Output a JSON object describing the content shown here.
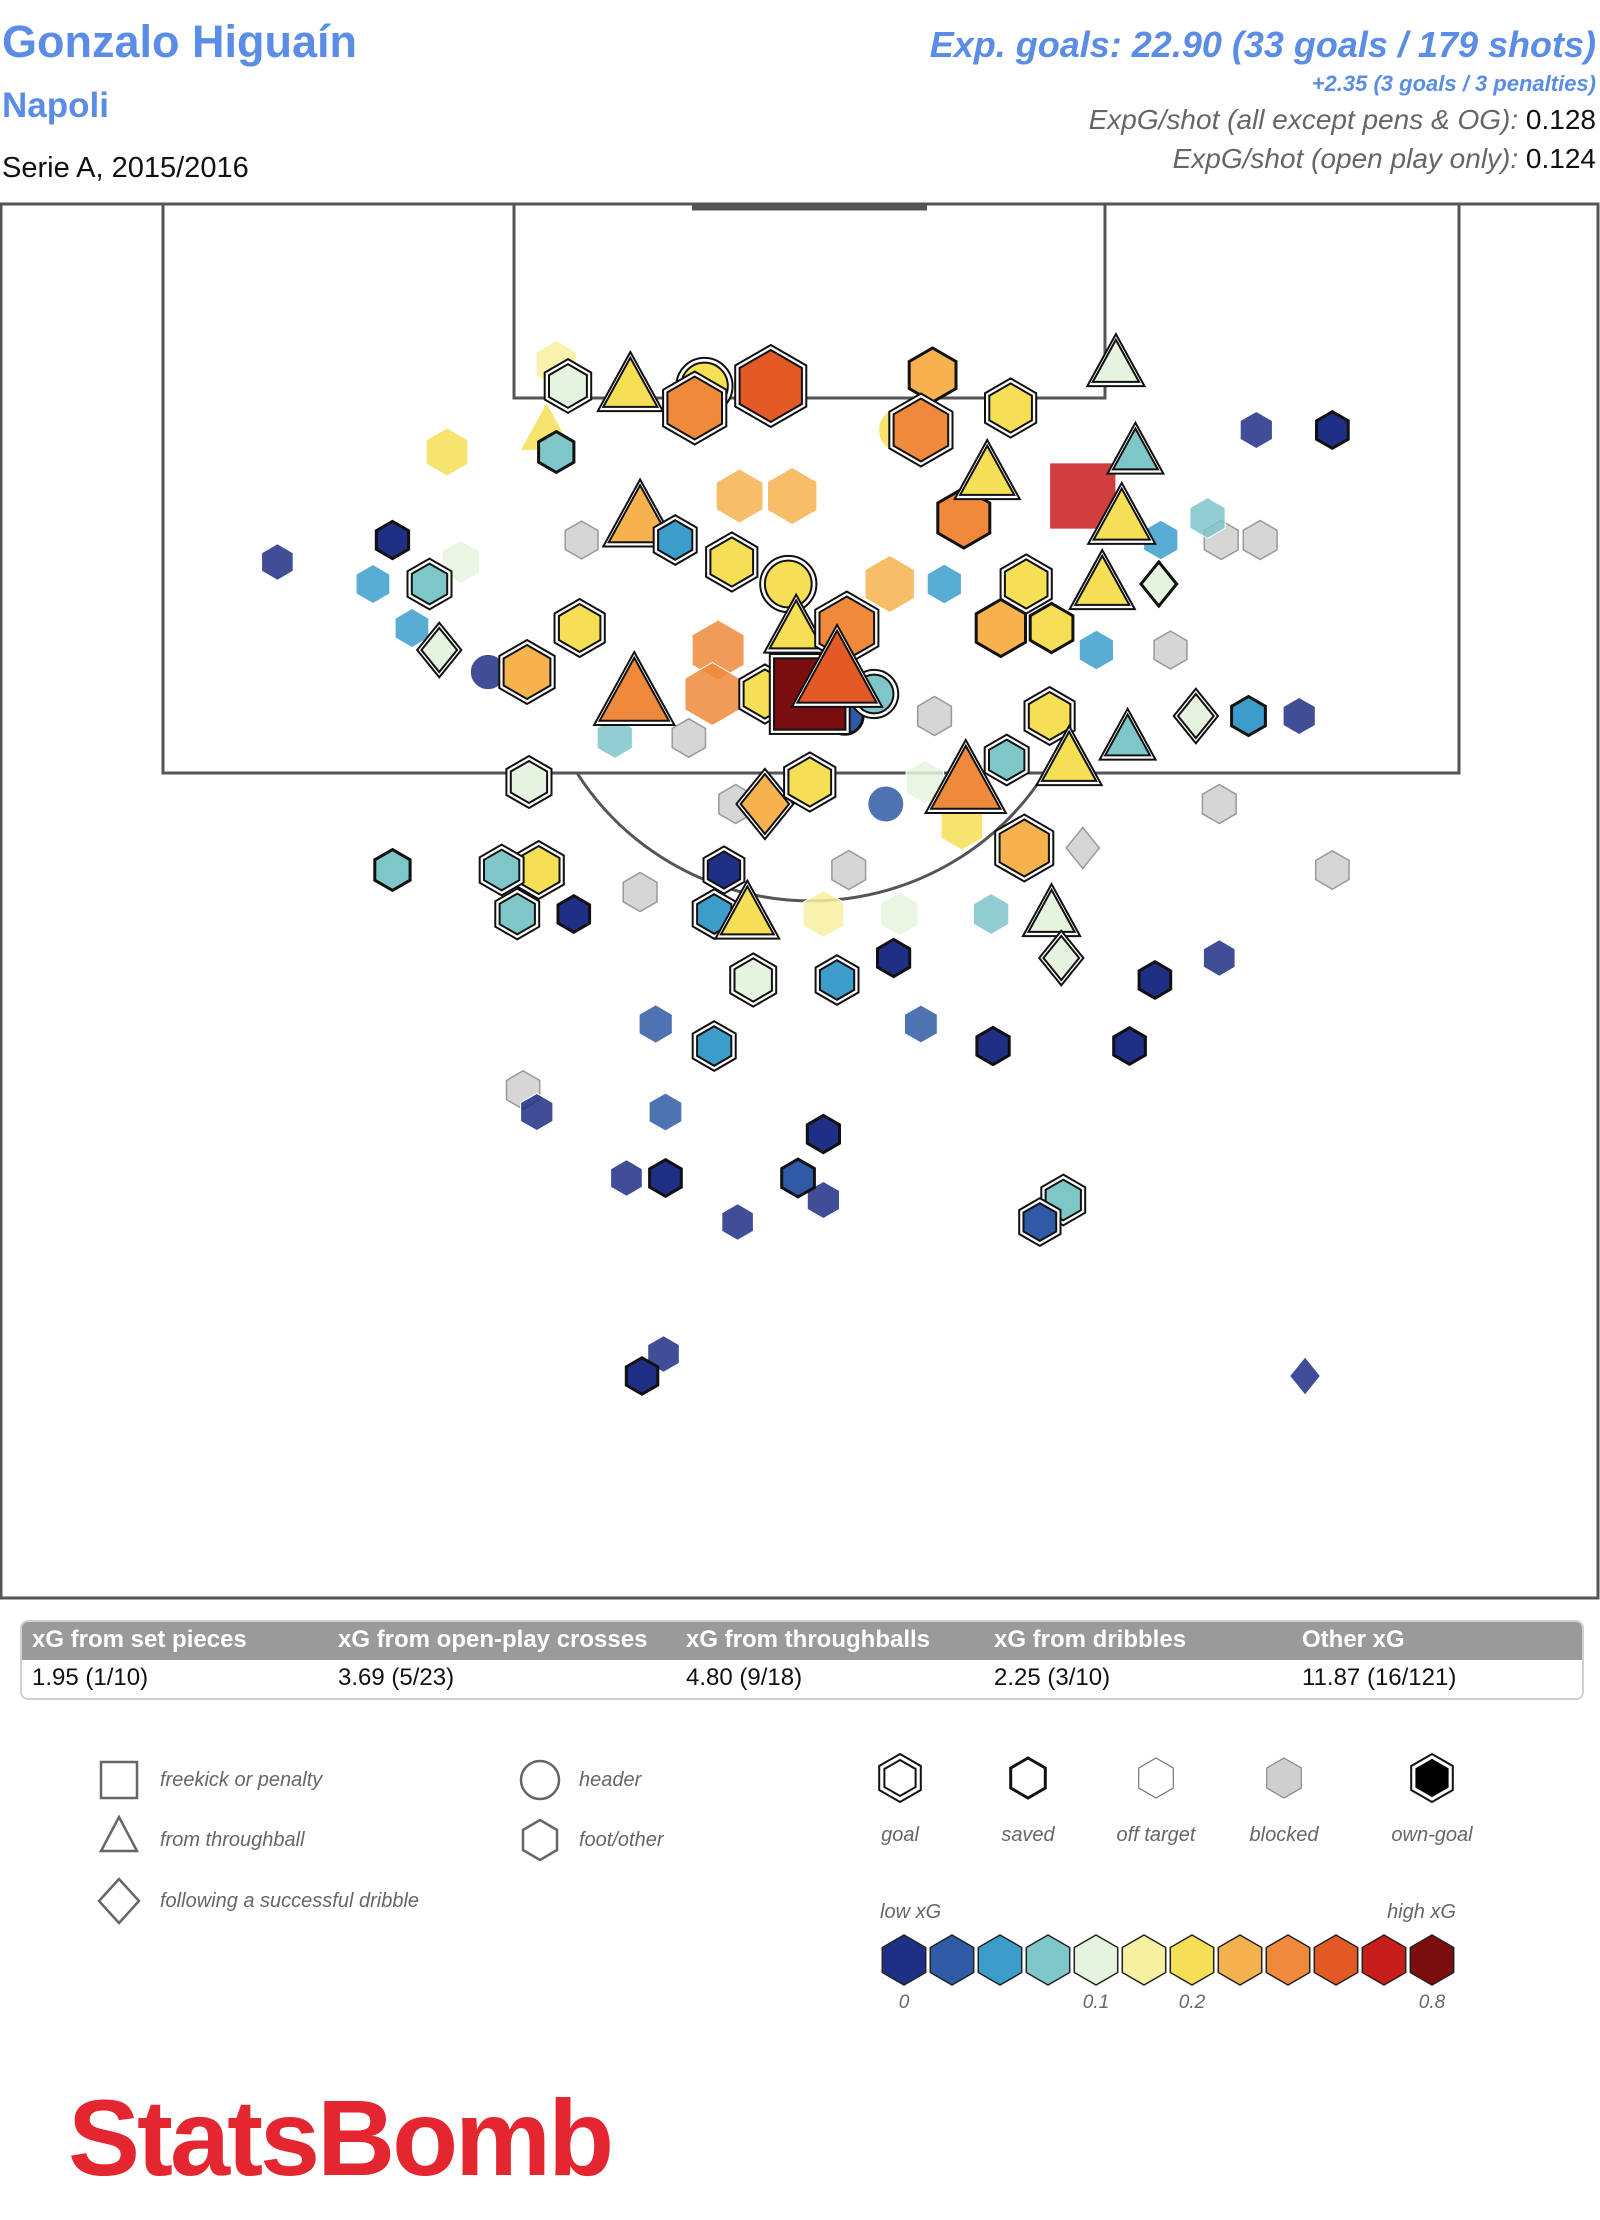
{
  "header": {
    "player": "Gonzalo Higuaín",
    "team": "Napoli",
    "competition": "Serie A, 2015/2016",
    "exp_goals_line": "Exp. goals: 22.90 (33 goals / 179 shots)",
    "penalties_line": "+2.35 (3 goals / 3 penalties)",
    "stat1_label": "ExpG/shot (all except pens & OG):",
    "stat1_value": "0.128",
    "stat2_label": "ExpG/shot (open play only):",
    "stat2_value": "0.124"
  },
  "xg_table": {
    "headers": [
      "xG from set pieces",
      "xG from open-play crosses",
      "xG from throughballs",
      "xG from dribbles",
      "Other xG"
    ],
    "values": [
      "1.95 (1/10)",
      "3.69 (5/23)",
      "4.80 (9/18)",
      "2.25 (3/10)",
      "11.87 (16/121)"
    ]
  },
  "legend": {
    "shape_labels": [
      "freekick or penalty",
      "from throughball",
      "following a successful dribble",
      "header",
      "foot/other"
    ],
    "outcome_labels": [
      "goal",
      "saved",
      "off target",
      "blocked",
      "own-goal"
    ],
    "low_label": "low xG",
    "high_label": "high xG",
    "tick_labels": [
      "0",
      "0.1",
      "0.2",
      "0.8"
    ],
    "scale_colors": [
      "#1f2f86",
      "#2f5ba6",
      "#3c9dcb",
      "#7fc6c9",
      "#e6f3df",
      "#f7f0a0",
      "#f5df55",
      "#f6b24e",
      "#ef8a3c",
      "#e35a27",
      "#c81d1d",
      "#7a0d0d"
    ]
  },
  "logo": "StatsBomb",
  "chart_data": {
    "type": "scatter",
    "title": "",
    "xlabel": "",
    "ylabel": "",
    "description_units": "x: yards across pitch (0-80, goal centered at 40); y: yards from goal line; xg: expected goals",
    "xlim": [
      0,
      80
    ],
    "ylim": [
      0,
      70
    ],
    "shots": [
      {
        "x": 28.1,
        "y": 8,
        "xg": 0.13,
        "shape": "foot",
        "outcome": "goal"
      },
      {
        "x": 31.3,
        "y": 8,
        "xg": 0.22,
        "shape": "throughball",
        "outcome": "goal"
      },
      {
        "x": 35.1,
        "y": 8,
        "xg": 0.22,
        "shape": "header",
        "outcome": "goal"
      },
      {
        "x": 34.6,
        "y": 9,
        "xg": 0.45,
        "shape": "foot",
        "outcome": "goal"
      },
      {
        "x": 38.5,
        "y": 8,
        "xg": 0.6,
        "shape": "foot",
        "outcome": "goal"
      },
      {
        "x": 27,
        "y": 10,
        "xg": 0.2,
        "shape": "throughball",
        "outcome": "off target"
      },
      {
        "x": 46.8,
        "y": 7.5,
        "xg": 0.3,
        "shape": "foot",
        "outcome": "saved"
      },
      {
        "x": 50.8,
        "y": 9,
        "xg": 0.22,
        "shape": "foot",
        "outcome": "goal"
      },
      {
        "x": 45.2,
        "y": 10,
        "xg": 0.2,
        "shape": "header",
        "outcome": "off target"
      },
      {
        "x": 46.2,
        "y": 10,
        "xg": 0.45,
        "shape": "foot",
        "outcome": "goal"
      },
      {
        "x": 56.2,
        "y": 7,
        "xg": 0.1,
        "shape": "throughball",
        "outcome": "goal"
      },
      {
        "x": 21.9,
        "y": 11,
        "xg": 0.2,
        "shape": "foot",
        "outcome": "off target"
      },
      {
        "x": 27.5,
        "y": 7,
        "xg": 0.18,
        "shape": "foot",
        "outcome": "off target"
      },
      {
        "x": 31.8,
        "y": 14,
        "xg": 0.35,
        "shape": "throughball",
        "outcome": "goal"
      },
      {
        "x": 27.5,
        "y": 11,
        "xg": 0.08,
        "shape": "foot",
        "outcome": "saved"
      },
      {
        "x": 36.9,
        "y": 13,
        "xg": 0.3,
        "shape": "foot",
        "outcome": "off target"
      },
      {
        "x": 57.2,
        "y": 11,
        "xg": 0.08,
        "shape": "throughball",
        "outcome": "goal"
      },
      {
        "x": 49.6,
        "y": 12,
        "xg": 0.22,
        "shape": "throughball",
        "outcome": "goal"
      },
      {
        "x": 63.4,
        "y": 10,
        "xg": 0.02,
        "shape": "foot",
        "outcome": "off target"
      },
      {
        "x": 67.3,
        "y": 10,
        "xg": 0.01,
        "shape": "foot",
        "outcome": "saved"
      },
      {
        "x": 54.5,
        "y": 13,
        "xg": 0.7,
        "shape": "freekick",
        "outcome": "off target"
      },
      {
        "x": 33.6,
        "y": 15,
        "xg": 0.06,
        "shape": "foot",
        "outcome": "goal"
      },
      {
        "x": 56.5,
        "y": 14,
        "xg": 0.25,
        "shape": "throughball",
        "outcome": "goal"
      },
      {
        "x": 39.6,
        "y": 13,
        "xg": 0.35,
        "shape": "foot",
        "outcome": "off target"
      },
      {
        "x": 48.4,
        "y": 14,
        "xg": 0.4,
        "shape": "foot",
        "outcome": "saved"
      },
      {
        "x": 60.9,
        "y": 14,
        "xg": 0.08,
        "shape": "foot",
        "outcome": "off target"
      },
      {
        "x": 58.5,
        "y": 15,
        "xg": 0.06,
        "shape": "foot",
        "outcome": "off target"
      },
      {
        "x": 61.6,
        "y": 15,
        "xg": 0.05,
        "shape": "foot",
        "outcome": "blocked"
      },
      {
        "x": 63.6,
        "y": 15,
        "xg": 0.05,
        "shape": "foot",
        "outcome": "blocked"
      },
      {
        "x": 28.8,
        "y": 15,
        "xg": 0.03,
        "shape": "foot",
        "outcome": "blocked"
      },
      {
        "x": 19.1,
        "y": 15,
        "xg": 0.02,
        "shape": "foot",
        "outcome": "saved"
      },
      {
        "x": 13.2,
        "y": 16,
        "xg": 0.01,
        "shape": "foot",
        "outcome": "off target"
      },
      {
        "x": 21,
        "y": 17,
        "xg": 0.08,
        "shape": "foot",
        "outcome": "goal"
      },
      {
        "x": 22.6,
        "y": 16,
        "xg": 0.12,
        "shape": "foot",
        "outcome": "off target"
      },
      {
        "x": 18.1,
        "y": 17,
        "xg": 0.05,
        "shape": "foot",
        "outcome": "off target"
      },
      {
        "x": 36.5,
        "y": 16,
        "xg": 0.22,
        "shape": "foot",
        "outcome": "goal"
      },
      {
        "x": 39.4,
        "y": 17,
        "xg": 0.22,
        "shape": "header",
        "outcome": "goal"
      },
      {
        "x": 44.6,
        "y": 17,
        "xg": 0.35,
        "shape": "foot",
        "outcome": "off target"
      },
      {
        "x": 47.4,
        "y": 17,
        "xg": 0.06,
        "shape": "foot",
        "outcome": "off target"
      },
      {
        "x": 51.6,
        "y": 17,
        "xg": 0.22,
        "shape": "foot",
        "outcome": "goal"
      },
      {
        "x": 55.5,
        "y": 17,
        "xg": 0.22,
        "shape": "throughball",
        "outcome": "goal"
      },
      {
        "x": 58.4,
        "y": 17,
        "xg": 0.1,
        "shape": "dribble",
        "outcome": "saved"
      },
      {
        "x": 28.7,
        "y": 19,
        "xg": 0.2,
        "shape": "foot",
        "outcome": "goal"
      },
      {
        "x": 21.5,
        "y": 20,
        "xg": 0.1,
        "shape": "dribble",
        "outcome": "goal"
      },
      {
        "x": 20.1,
        "y": 19,
        "xg": 0.05,
        "shape": "foot",
        "outcome": "off target"
      },
      {
        "x": 35.8,
        "y": 20,
        "xg": 0.4,
        "shape": "foot",
        "outcome": "off target"
      },
      {
        "x": 39.8,
        "y": 19,
        "xg": 0.2,
        "shape": "throughball",
        "outcome": "goal"
      },
      {
        "x": 42.4,
        "y": 19,
        "xg": 0.45,
        "shape": "foot",
        "outcome": "goal"
      },
      {
        "x": 50.3,
        "y": 19,
        "xg": 0.35,
        "shape": "foot",
        "outcome": "saved"
      },
      {
        "x": 52.9,
        "y": 19,
        "xg": 0.22,
        "shape": "foot",
        "outcome": "saved"
      },
      {
        "x": 55.2,
        "y": 20,
        "xg": 0.06,
        "shape": "foot",
        "outcome": "off target"
      },
      {
        "x": 59,
        "y": 20,
        "xg": 0.03,
        "shape": "foot",
        "outcome": "blocked"
      },
      {
        "x": 26,
        "y": 21,
        "xg": 0.3,
        "shape": "foot",
        "outcome": "goal"
      },
      {
        "x": 24,
        "y": 21,
        "xg": 0.02,
        "shape": "header",
        "outcome": "off target"
      },
      {
        "x": 31.5,
        "y": 22,
        "xg": 0.45,
        "shape": "throughball",
        "outcome": "goal"
      },
      {
        "x": 35.5,
        "y": 22,
        "xg": 0.45,
        "shape": "foot",
        "outcome": "off target"
      },
      {
        "x": 38.2,
        "y": 22,
        "xg": 0.22,
        "shape": "foot",
        "outcome": "goal"
      },
      {
        "x": 40.5,
        "y": 22,
        "xg": 0.8,
        "shape": "freekick",
        "outcome": "goal"
      },
      {
        "x": 43.8,
        "y": 22,
        "xg": 0.08,
        "shape": "header",
        "outcome": "goal"
      },
      {
        "x": 41.9,
        "y": 21,
        "xg": 0.6,
        "shape": "throughball",
        "outcome": "goal"
      },
      {
        "x": 42.3,
        "y": 23,
        "xg": 0.04,
        "shape": "header",
        "outcome": "saved"
      },
      {
        "x": 46.9,
        "y": 23,
        "xg": 0.05,
        "shape": "foot",
        "outcome": "blocked"
      },
      {
        "x": 52.8,
        "y": 23,
        "xg": 0.2,
        "shape": "foot",
        "outcome": "goal"
      },
      {
        "x": 56.8,
        "y": 24,
        "xg": 0.08,
        "shape": "throughball",
        "outcome": "goal"
      },
      {
        "x": 60.3,
        "y": 23,
        "xg": 0.1,
        "shape": "dribble",
        "outcome": "goal"
      },
      {
        "x": 63,
        "y": 23,
        "xg": 0.05,
        "shape": "foot",
        "outcome": "saved"
      },
      {
        "x": 65.6,
        "y": 23,
        "xg": 0.02,
        "shape": "foot",
        "outcome": "off target"
      },
      {
        "x": 30.5,
        "y": 24,
        "xg": 0.08,
        "shape": "foot",
        "outcome": "off target"
      },
      {
        "x": 34.3,
        "y": 24,
        "xg": 0.04,
        "shape": "foot",
        "outcome": "blocked"
      },
      {
        "x": 26.1,
        "y": 26,
        "xg": 0.1,
        "shape": "foot",
        "outcome": "goal"
      },
      {
        "x": 38.2,
        "y": 27,
        "xg": 0.35,
        "shape": "dribble",
        "outcome": "goal"
      },
      {
        "x": 40.5,
        "y": 26,
        "xg": 0.22,
        "shape": "foot",
        "outcome": "goal"
      },
      {
        "x": 46.4,
        "y": 26,
        "xg": 0.12,
        "shape": "foot",
        "outcome": "off target"
      },
      {
        "x": 48.5,
        "y": 26,
        "xg": 0.45,
        "shape": "throughball",
        "outcome": "goal"
      },
      {
        "x": 50.6,
        "y": 25,
        "xg": 0.08,
        "shape": "foot",
        "outcome": "goal"
      },
      {
        "x": 53.8,
        "y": 25,
        "xg": 0.22,
        "shape": "throughball",
        "outcome": "goal"
      },
      {
        "x": 44.4,
        "y": 27,
        "xg": 0.03,
        "shape": "header",
        "outcome": "off target"
      },
      {
        "x": 61.5,
        "y": 27,
        "xg": 0.05,
        "shape": "foot",
        "outcome": "blocked"
      },
      {
        "x": 36.7,
        "y": 27,
        "xg": 0.05,
        "shape": "foot",
        "outcome": "blocked"
      },
      {
        "x": 48.3,
        "y": 28,
        "xg": 0.2,
        "shape": "foot",
        "outcome": "off target"
      },
      {
        "x": 51.5,
        "y": 29,
        "xg": 0.35,
        "shape": "foot",
        "outcome": "goal"
      },
      {
        "x": 54.5,
        "y": 29,
        "xg": 0.05,
        "shape": "dribble",
        "outcome": "blocked"
      },
      {
        "x": 26.6,
        "y": 30,
        "xg": 0.2,
        "shape": "foot",
        "outcome": "goal"
      },
      {
        "x": 24.7,
        "y": 30,
        "xg": 0.08,
        "shape": "foot",
        "outcome": "goal"
      },
      {
        "x": 19.1,
        "y": 30,
        "xg": 0.08,
        "shape": "foot",
        "outcome": "saved"
      },
      {
        "x": 36.1,
        "y": 30,
        "xg": 0.02,
        "shape": "foot",
        "outcome": "goal"
      },
      {
        "x": 42.5,
        "y": 30,
        "xg": 0.05,
        "shape": "foot",
        "outcome": "blocked"
      },
      {
        "x": 31.8,
        "y": 31,
        "xg": 0.05,
        "shape": "foot",
        "outcome": "blocked"
      },
      {
        "x": 67.3,
        "y": 30,
        "xg": 0.04,
        "shape": "foot",
        "outcome": "blocked"
      },
      {
        "x": 25.5,
        "y": 32,
        "xg": 0.08,
        "shape": "foot",
        "outcome": "goal"
      },
      {
        "x": 28.4,
        "y": 32,
        "xg": 0.01,
        "shape": "foot",
        "outcome": "saved"
      },
      {
        "x": 35.6,
        "y": 32,
        "xg": 0.06,
        "shape": "foot",
        "outcome": "goal"
      },
      {
        "x": 37.3,
        "y": 32,
        "xg": 0.2,
        "shape": "throughball",
        "outcome": "goal"
      },
      {
        "x": 41.2,
        "y": 32,
        "xg": 0.18,
        "shape": "foot",
        "outcome": "off target"
      },
      {
        "x": 45.1,
        "y": 32,
        "xg": 0.12,
        "shape": "foot",
        "outcome": "off target"
      },
      {
        "x": 49.8,
        "y": 32,
        "xg": 0.08,
        "shape": "foot",
        "outcome": "off target"
      },
      {
        "x": 52.9,
        "y": 32,
        "xg": 0.1,
        "shape": "throughball",
        "outcome": "goal"
      },
      {
        "x": 53.4,
        "y": 34,
        "xg": 0.1,
        "shape": "dribble",
        "outcome": "goal"
      },
      {
        "x": 37.6,
        "y": 35,
        "xg": 0.12,
        "shape": "foot",
        "outcome": "goal"
      },
      {
        "x": 41.9,
        "y": 35,
        "xg": 0.06,
        "shape": "foot",
        "outcome": "goal"
      },
      {
        "x": 44.8,
        "y": 34,
        "xg": 0.02,
        "shape": "foot",
        "outcome": "saved"
      },
      {
        "x": 58.2,
        "y": 35,
        "xg": 0.01,
        "shape": "foot",
        "outcome": "saved"
      },
      {
        "x": 61.5,
        "y": 34,
        "xg": 0.01,
        "shape": "foot",
        "outcome": "off target"
      },
      {
        "x": 35.6,
        "y": 38,
        "xg": 0.06,
        "shape": "foot",
        "outcome": "goal"
      },
      {
        "x": 49.9,
        "y": 38,
        "xg": 0.02,
        "shape": "foot",
        "outcome": "saved"
      },
      {
        "x": 56.9,
        "y": 38,
        "xg": 0.01,
        "shape": "foot",
        "outcome": "saved"
      },
      {
        "x": 32.6,
        "y": 37,
        "xg": 0.04,
        "shape": "foot",
        "outcome": "off target"
      },
      {
        "x": 46.2,
        "y": 37,
        "xg": 0.03,
        "shape": "foot",
        "outcome": "off target"
      },
      {
        "x": 25.8,
        "y": 40,
        "xg": 0.04,
        "shape": "foot",
        "outcome": "blocked"
      },
      {
        "x": 26.5,
        "y": 41,
        "xg": 0.02,
        "shape": "foot",
        "outcome": "off target"
      },
      {
        "x": 33.1,
        "y": 41,
        "xg": 0.03,
        "shape": "foot",
        "outcome": "off target"
      },
      {
        "x": 41.2,
        "y": 42,
        "xg": 0.02,
        "shape": "foot",
        "outcome": "saved"
      },
      {
        "x": 31.1,
        "y": 44,
        "xg": 0.01,
        "shape": "foot",
        "outcome": "off target"
      },
      {
        "x": 33.1,
        "y": 44,
        "xg": 0.01,
        "shape": "foot",
        "outcome": "saved"
      },
      {
        "x": 39.9,
        "y": 44,
        "xg": 0.03,
        "shape": "foot",
        "outcome": "saved"
      },
      {
        "x": 41.2,
        "y": 45,
        "xg": 0.02,
        "shape": "foot",
        "outcome": "off target"
      },
      {
        "x": 53.5,
        "y": 45,
        "xg": 0.08,
        "shape": "foot",
        "outcome": "goal"
      },
      {
        "x": 52.3,
        "y": 46,
        "xg": 0.03,
        "shape": "foot",
        "outcome": "goal"
      },
      {
        "x": 36.8,
        "y": 46,
        "xg": 0.01,
        "shape": "foot",
        "outcome": "off target"
      },
      {
        "x": 31.9,
        "y": 53,
        "xg": 0.005,
        "shape": "foot",
        "outcome": "saved"
      },
      {
        "x": 33,
        "y": 52,
        "xg": 0.01,
        "shape": "foot",
        "outcome": "off target"
      },
      {
        "x": 65.9,
        "y": 53,
        "xg": 0.005,
        "shape": "dribble",
        "outcome": "off target"
      }
    ]
  }
}
